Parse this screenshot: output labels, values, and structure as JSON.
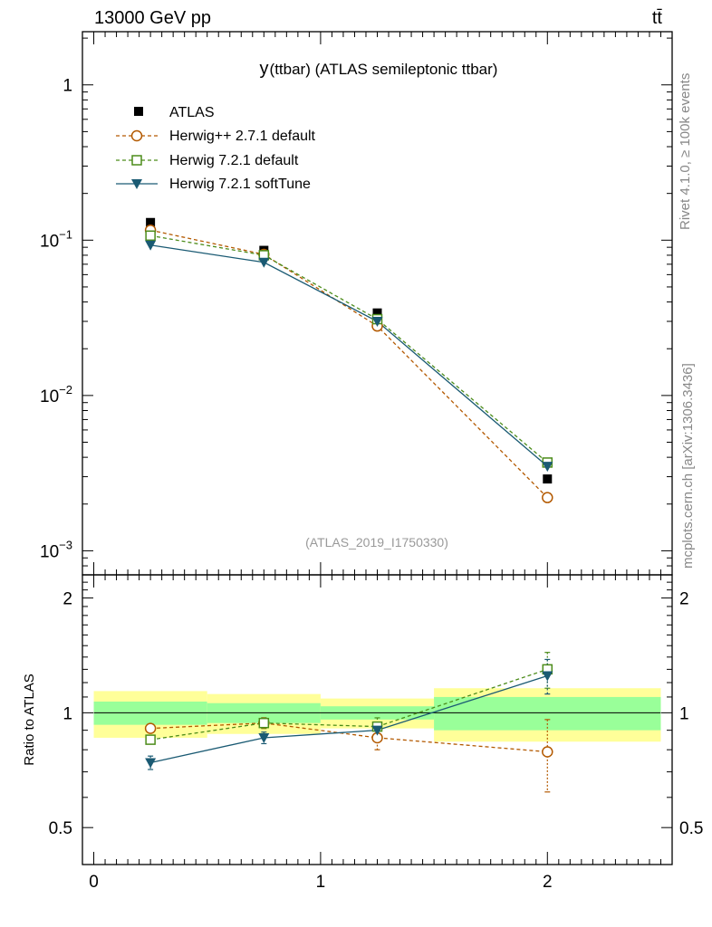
{
  "header": {
    "energy_label": "13000 GeV pp",
    "process_label": "tt̄"
  },
  "side_labels": {
    "rivet": "Rivet 4.1.0, ≥ 100k events",
    "mcplots": "mcplots.cern.ch [arXiv:1306.3436]"
  },
  "chart_data": {
    "type": "line",
    "title": "y(ttbar) (ATLAS semileptonic ttbar)",
    "title_y": "y",
    "title_rest": "(ttbar) (ATLAS semileptonic ttbar)",
    "analysis_id": "(ATLAS_2019_I1750330)",
    "xlabel": "",
    "ylabel_ratio": "Ratio to ATLAS",
    "xlim": [
      -0.05,
      2.55
    ],
    "ylim": [
      0.0007,
      2.2
    ],
    "ratio_ylim": [
      0.4,
      2.3
    ],
    "x_tick_labels": [
      "0",
      "1",
      "2"
    ],
    "y_tick_labels": [
      {
        "base": "1",
        "exp": ""
      },
      {
        "base": "10",
        "exp": "−1"
      },
      {
        "base": "10",
        "exp": "−2"
      },
      {
        "base": "10",
        "exp": "−3"
      }
    ],
    "ratio_tick_labels": [
      "2",
      "1",
      "0.5"
    ],
    "bins": [
      [
        0,
        0.5
      ],
      [
        0.5,
        1.0
      ],
      [
        1.0,
        1.5
      ],
      [
        1.5,
        2.5
      ]
    ],
    "x": [
      0.25,
      0.75,
      1.25,
      2.0
    ],
    "data": {
      "name": "ATLAS",
      "values": [
        0.13,
        0.086,
        0.034,
        0.0029
      ]
    },
    "series": [
      {
        "name": "Herwig++ 2.7.1 default",
        "color": "#b35900",
        "marker": "circle",
        "dashed": true,
        "values": [
          0.116,
          0.081,
          0.028,
          0.0022
        ],
        "ratio": [
          0.91,
          0.94,
          0.86,
          0.79
        ],
        "ratio_err": [
          0.02,
          0.03,
          0.06,
          0.17
        ]
      },
      {
        "name": "Herwig 7.2.1 default",
        "color": "#4c8c1a",
        "marker": "square",
        "dashed": true,
        "values": [
          0.107,
          0.08,
          0.031,
          0.0037
        ],
        "ratio": [
          0.85,
          0.94,
          0.92,
          1.3
        ],
        "ratio_err": [
          0.02,
          0.03,
          0.05,
          0.14
        ]
      },
      {
        "name": "Herwig 7.2.1 softTune",
        "color": "#1a5a73",
        "marker": "triangle",
        "dashed": false,
        "values": [
          0.093,
          0.072,
          0.03,
          0.0035
        ],
        "ratio": [
          0.74,
          0.86,
          0.9,
          1.25
        ],
        "ratio_err": [
          0.03,
          0.03,
          0.04,
          0.13
        ]
      }
    ],
    "bands": {
      "stat_sys": [
        0.14,
        0.12,
        0.09,
        0.16
      ],
      "stat": [
        0.07,
        0.06,
        0.04,
        0.1
      ],
      "outer_color": "#ffff99",
      "inner_color": "#99ff99"
    }
  }
}
